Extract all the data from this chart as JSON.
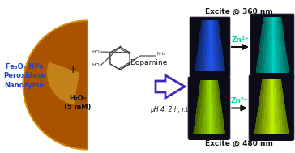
{
  "background_color": "#ffffff",
  "left_text_lines": [
    "Fe₃O₄ NPs",
    "Peroxidase",
    "Nanozyme"
  ],
  "left_text_color": "#2244cc",
  "semicircle_gradient_colors": [
    "#ffd000",
    "#e8a800",
    "#c07800",
    "#a06000"
  ],
  "h2o2_text": "H₂O₂\n(5 mM)",
  "plus_text": "+",
  "dopamine_label": "Dopamine",
  "reaction_condition": "pH 4, 2 h, r.t.",
  "arrow_color": "#4422bb",
  "excite_360_label": "Excite @ 360 nm",
  "excite_480_label": "Excite @ 480 nm",
  "zn_label": "Zn²⁺",
  "zn_color": "#00ddaa",
  "panel_bg": "#0a0a14",
  "blue_tube_color": "#2255ee",
  "cyan_tube_color": "#00ccbb",
  "green_tube_color": "#99dd00",
  "bright_green_tube_color": "#bbee00"
}
